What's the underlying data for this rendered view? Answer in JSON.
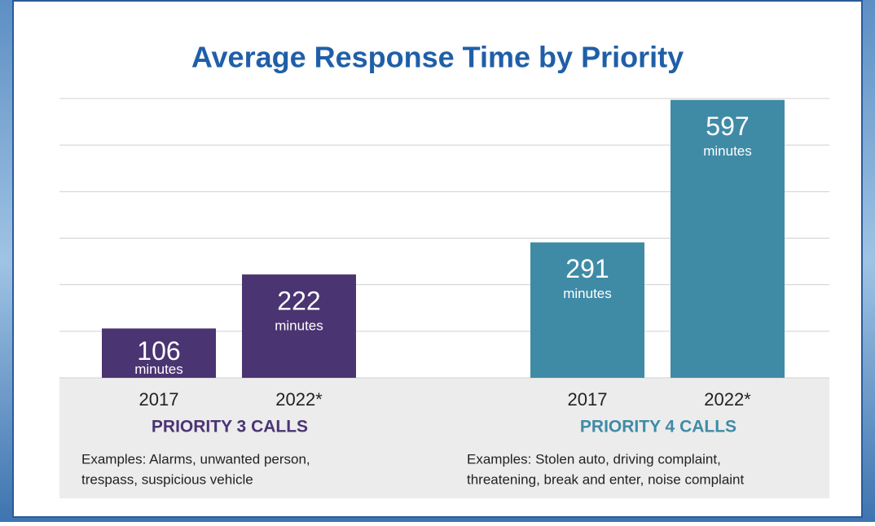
{
  "chart_data": {
    "type": "bar",
    "title": "Average Response Time by Priority",
    "ylim": [
      0,
      600
    ],
    "yticks": [
      0,
      100,
      200,
      300,
      400,
      500,
      600
    ],
    "grid": true,
    "value_unit": "minutes",
    "groups": [
      {
        "name": "PRIORITY 3 CALLS",
        "color": "#4b3472",
        "categories": [
          "2017",
          "2022*"
        ],
        "values": [
          106,
          222
        ],
        "examples": [
          "Examples: Alarms, unwanted person,",
          "trespass,  suspicious vehicle"
        ]
      },
      {
        "name": "PRIORITY 4 CALLS",
        "color": "#3f8ba6",
        "categories": [
          "2017",
          "2022*"
        ],
        "values": [
          291,
          597
        ],
        "examples": [
          "Examples: Stolen auto, driving complaint,",
          "threatening, break and enter, noise complaint"
        ]
      }
    ]
  }
}
